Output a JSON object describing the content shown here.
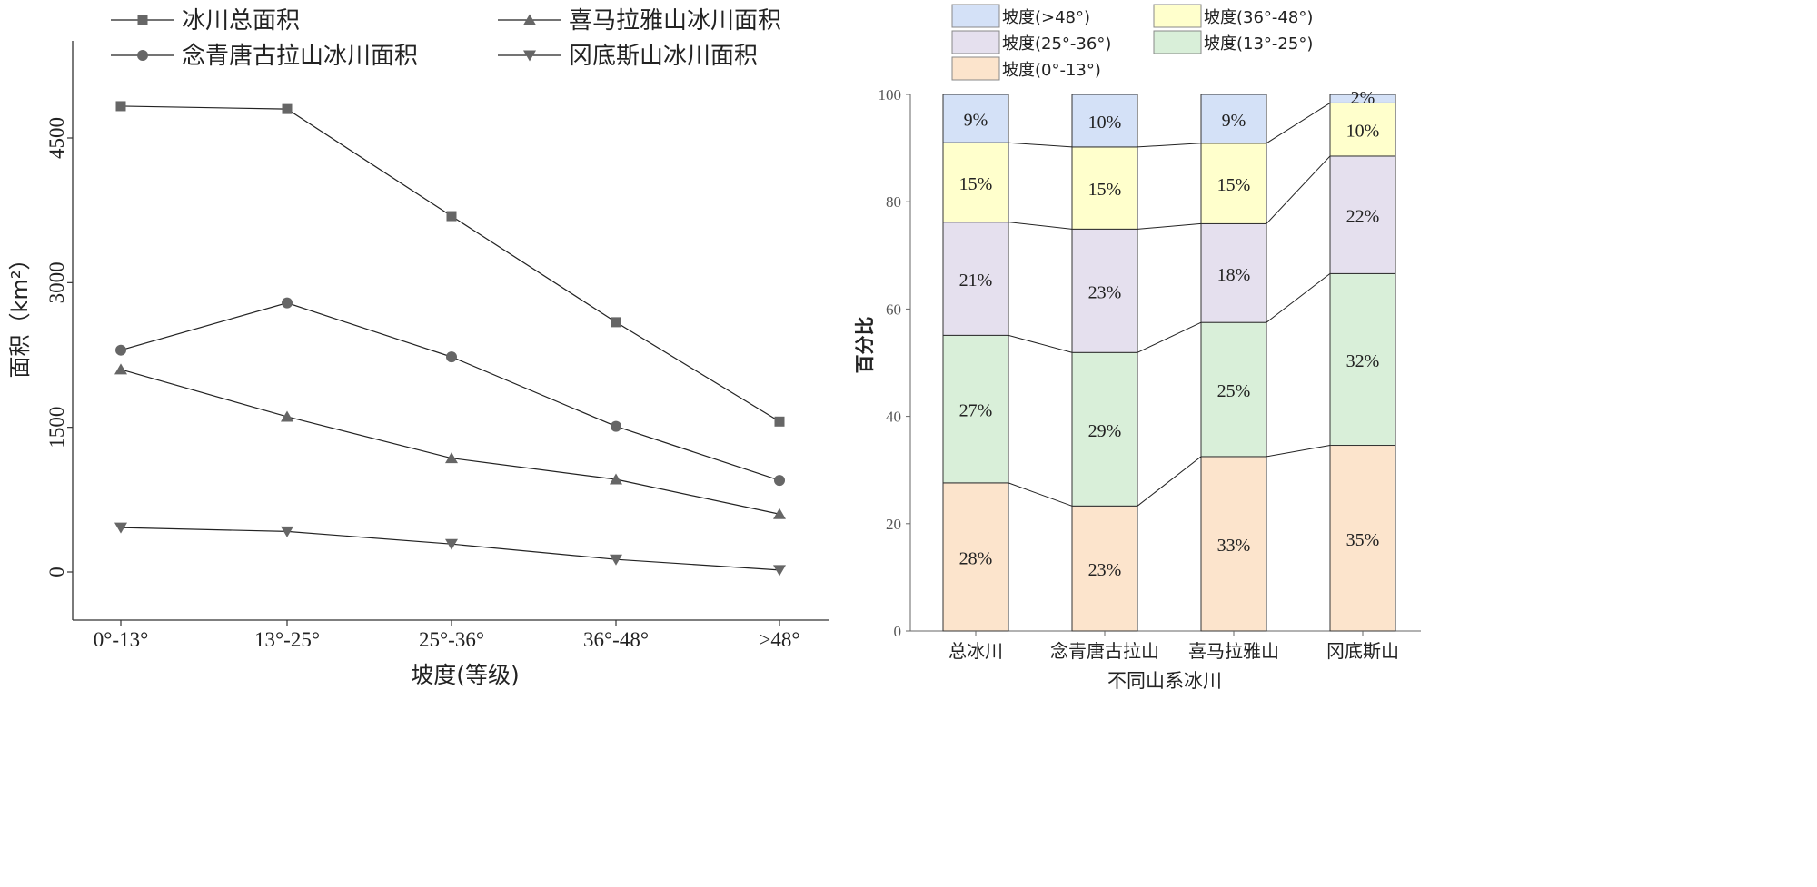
{
  "chart_data": [
    {
      "type": "line",
      "xlabel": "坡度(等级)",
      "ylabel": "面积（km²）",
      "categories": [
        "0°-13°",
        "13°-25°",
        "25°-36°",
        "36°-48°",
        ">48°"
      ],
      "yticks": [
        0,
        1500,
        3000,
        4500
      ],
      "ylim": [
        -500,
        5500
      ],
      "legend_position": "top",
      "series": [
        {
          "name": "冰川总面积",
          "marker": "square",
          "values": [
            4830,
            4800,
            3690,
            2590,
            1560
          ]
        },
        {
          "name": "念青唐古拉山冰川面积",
          "marker": "circle",
          "values": [
            2300,
            2790,
            2230,
            1510,
            950
          ]
        },
        {
          "name": "喜马拉雅山冰川面积",
          "marker": "triangle-up",
          "values": [
            2100,
            1610,
            1180,
            960,
            600
          ]
        },
        {
          "name": "冈底斯山冰川面积",
          "marker": "triangle-down",
          "values": [
            460,
            420,
            290,
            130,
            20
          ]
        }
      ]
    },
    {
      "type": "bar",
      "stacked": true,
      "xlabel": "不同山系冰川",
      "ylabel": "百分比",
      "categories": [
        "总冰川",
        "念青唐古拉山",
        "喜马拉雅山",
        "冈底斯山"
      ],
      "yticks": [
        0,
        20,
        40,
        60,
        80,
        100
      ],
      "ylim": [
        0,
        100
      ],
      "legend_position": "top",
      "series": [
        {
          "name": "坡度(0°-13°)",
          "color": "#fce4cc",
          "values": [
            27.6,
            23.3,
            32.5,
            34.6
          ],
          "labels": [
            "28%",
            "23%",
            "33%",
            "35%"
          ]
        },
        {
          "name": "坡度(13°-25°)",
          "color": "#d9efd9",
          "values": [
            27.5,
            28.6,
            25.0,
            32.0
          ],
          "labels": [
            "27%",
            "29%",
            "25%",
            "32%"
          ]
        },
        {
          "name": "坡度(25°-36°)",
          "color": "#e5e0ee",
          "values": [
            21.1,
            23.0,
            18.4,
            21.9
          ],
          "labels": [
            "21%",
            "23%",
            "18%",
            "22%"
          ]
        },
        {
          "name": "坡度(36°-48°)",
          "color": "#ffffcc",
          "values": [
            14.8,
            15.3,
            15.0,
            9.9
          ],
          "labels": [
            "15%",
            "15%",
            "15%",
            "10%"
          ]
        },
        {
          "name": "坡度(>48°)",
          "color": "#d4e1f7",
          "values": [
            9.0,
            9.8,
            9.1,
            1.6
          ],
          "labels": [
            "9%",
            "10%",
            "9%",
            "2%"
          ]
        }
      ]
    }
  ]
}
